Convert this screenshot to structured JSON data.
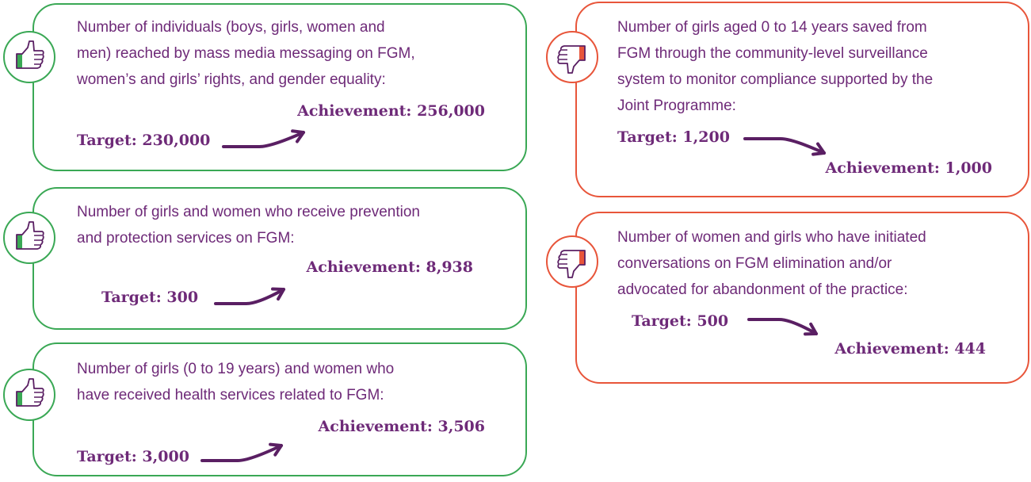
{
  "cards": [
    {
      "lines": [
        "Number of individuals (boys, girls, women and",
        "men) reached by mass media messaging on FGM,",
        "women’s and girls’ rights, and gender equality:"
      ],
      "achievement": "Achievement: 256,000",
      "target": "Target: 230,000"
    },
    {
      "lines": [
        "Number of girls and women who receive prevention",
        "and protection services on FGM:"
      ],
      "achievement": "Achievement: 8,938",
      "target": "Target: 300"
    },
    {
      "lines": [
        "Number of girls (0 to 19 years) and women who",
        "have received health services related to FGM:"
      ],
      "achievement": "Achievement: 3,506",
      "target": "Target: 3,000"
    },
    {
      "lines": [
        "Number of girls aged 0 to 14 years saved from",
        "FGM through the community-level surveillance",
        "system to monitor compliance supported by the",
        "Joint Programme:"
      ],
      "target": "Target: 1,200",
      "achievement": "Achievement: 1,000"
    },
    {
      "lines": [
        "Number of women and girls who have initiated",
        "conversations on FGM elimination and/or",
        "advocated for abandonment of the practice:"
      ],
      "target": "Target: 500",
      "achievement": "Achievement: 444"
    }
  ]
}
